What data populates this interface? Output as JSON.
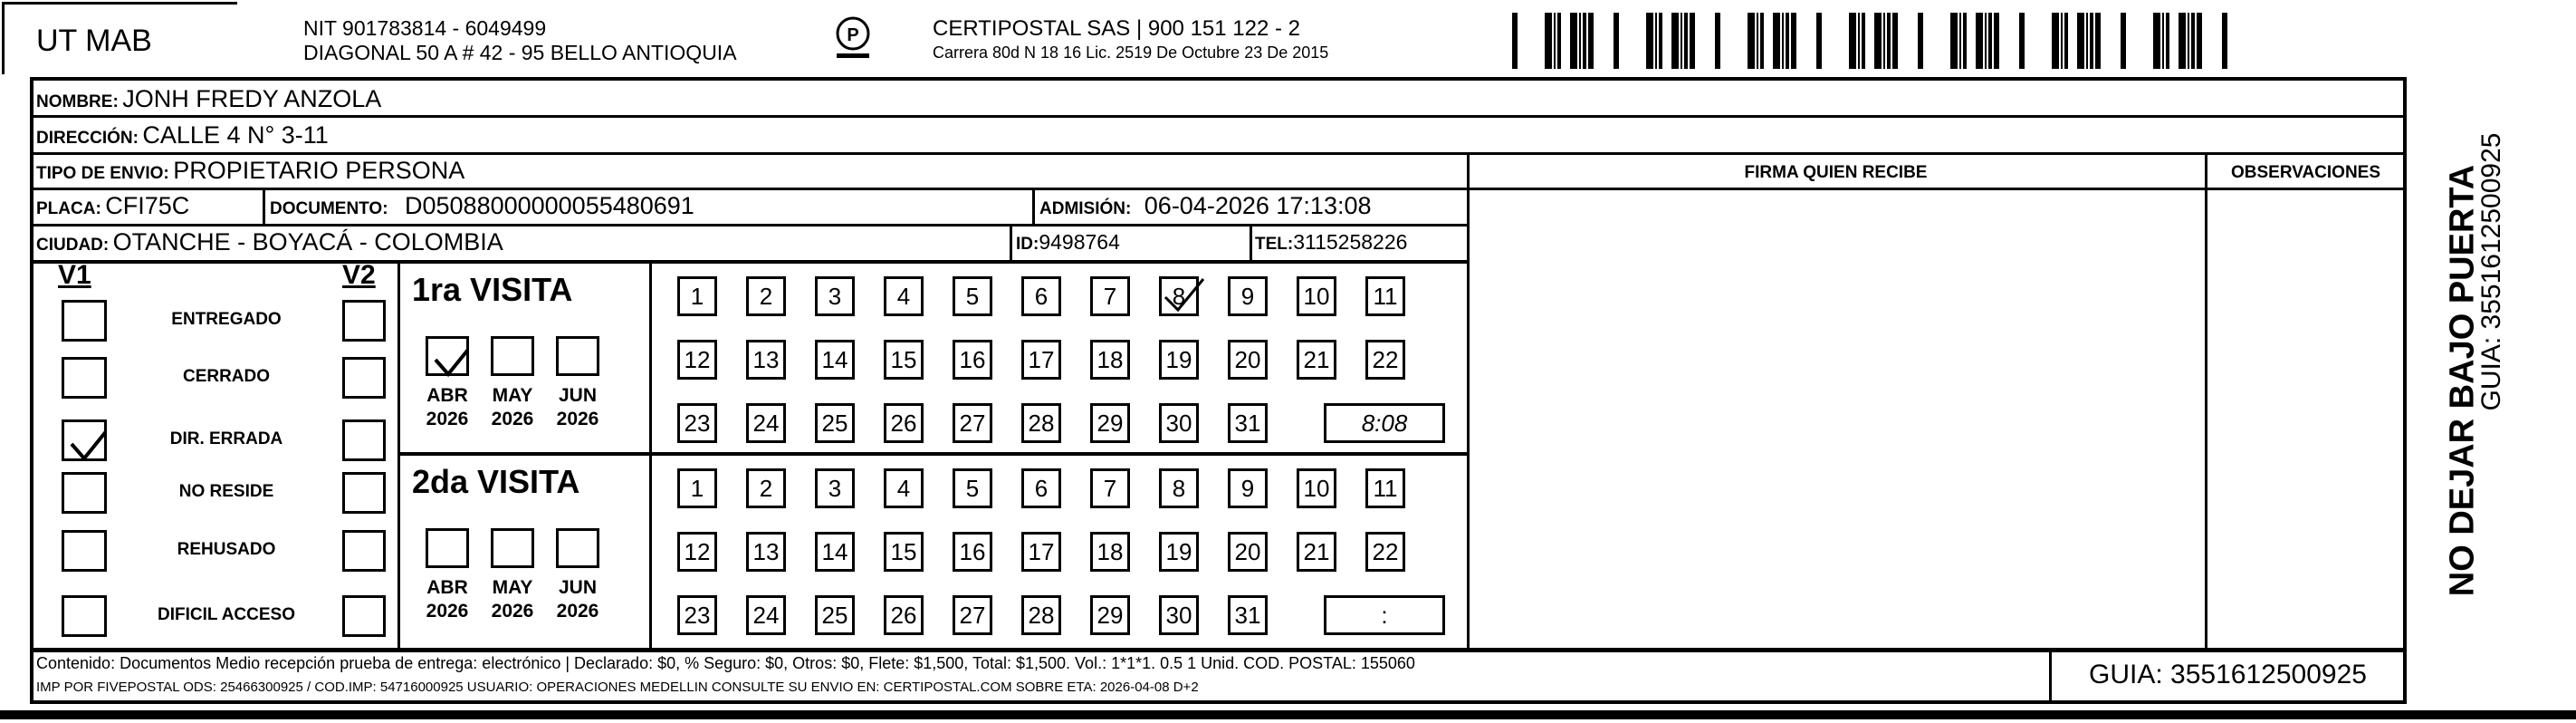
{
  "header": {
    "company": "UT MAB",
    "nit": "NIT 901783814 - 6049499",
    "address": "DIAGONAL 50 A # 42 - 95  BELLO  ANTIOQUIA",
    "carrier": "CERTIPOSTAL SAS | 900 151 122 - 2",
    "license": "Carrera 80d N 18 16  Lic. 2519 De Octubre 23 De 2015",
    "logo_text": "CERTIPOSTAL"
  },
  "recipient": {
    "nombre_label": "NOMBRE:",
    "nombre": "JONH FREDY ANZOLA",
    "direccion_label": "DIRECCIÓN:",
    "direccion": "CALLE 4 N° 3-11",
    "tipo_label": "TIPO DE ENVIO:",
    "tipo": "PROPIETARIO PERSONA",
    "placa_label": "PLACA:",
    "placa": "CFI75C",
    "documento_label": "DOCUMENTO:",
    "documento": "D05088000000055480691",
    "admision_label": "ADMISIÓN:",
    "admision": "06-04-2026 17:13:08",
    "ciudad_label": "CIUDAD:",
    "ciudad": "OTANCHE - BOYACÁ - COLOMBIA",
    "id_label": "ID:",
    "id": "9498764",
    "tel_label": "TEL:",
    "tel": "3115258226"
  },
  "columns": {
    "firma": "FIRMA QUIEN RECIBE",
    "observaciones": "OBSERVACIONES"
  },
  "status": {
    "v1": "V1",
    "v2": "V2",
    "items": [
      {
        "label": "ENTREGADO",
        "v1": false,
        "v2": false
      },
      {
        "label": "CERRADO",
        "v1": false,
        "v2": false
      },
      {
        "label": "DIR. ERRADA",
        "v1": true,
        "v2": false
      },
      {
        "label": "NO RESIDE",
        "v1": false,
        "v2": false
      },
      {
        "label": "REHUSADO",
        "v1": false,
        "v2": false
      },
      {
        "label": "DIFICIL ACCESO",
        "v1": false,
        "v2": false
      }
    ]
  },
  "visits": [
    {
      "title": "1ra VISITA",
      "months": [
        {
          "m": "ABR",
          "y": "2026",
          "checked": true
        },
        {
          "m": "MAY",
          "y": "2026",
          "checked": false
        },
        {
          "m": "JUN",
          "y": "2026",
          "checked": false
        }
      ],
      "checked_day": 8,
      "time": "8:08"
    },
    {
      "title": "2da VISITA",
      "months": [
        {
          "m": "ABR",
          "y": "2026",
          "checked": false
        },
        {
          "m": "MAY",
          "y": "2026",
          "checked": false
        },
        {
          "m": "JUN",
          "y": "2026",
          "checked": false
        }
      ],
      "checked_day": null,
      "time": ":"
    }
  ],
  "footer": {
    "contenido": "Contenido: Documentos Medio recepción prueba de entrega: electrónico | Declarado: $0, % Seguro: $0, Otros: $0, Flete: $1,500, Total: $1,500. Vol.: 1*1*1. 0.5  1 Unid. COD. POSTAL: 155060",
    "imp": "IMP POR FIVEPOSTAL ODS: 25466300925 / COD.IMP: 54716000925 USUARIO: OPERACIONES MEDELLIN CONSULTE SU ENVIO EN: CERTIPOSTAL.COM SOBRE ETA: 2026-04-08 D+2",
    "guia": "GUIA: 3551612500925"
  },
  "side": {
    "warning": "NO DEJAR BAJO PUERTA",
    "guia": "GUIA: 3551612500925"
  }
}
